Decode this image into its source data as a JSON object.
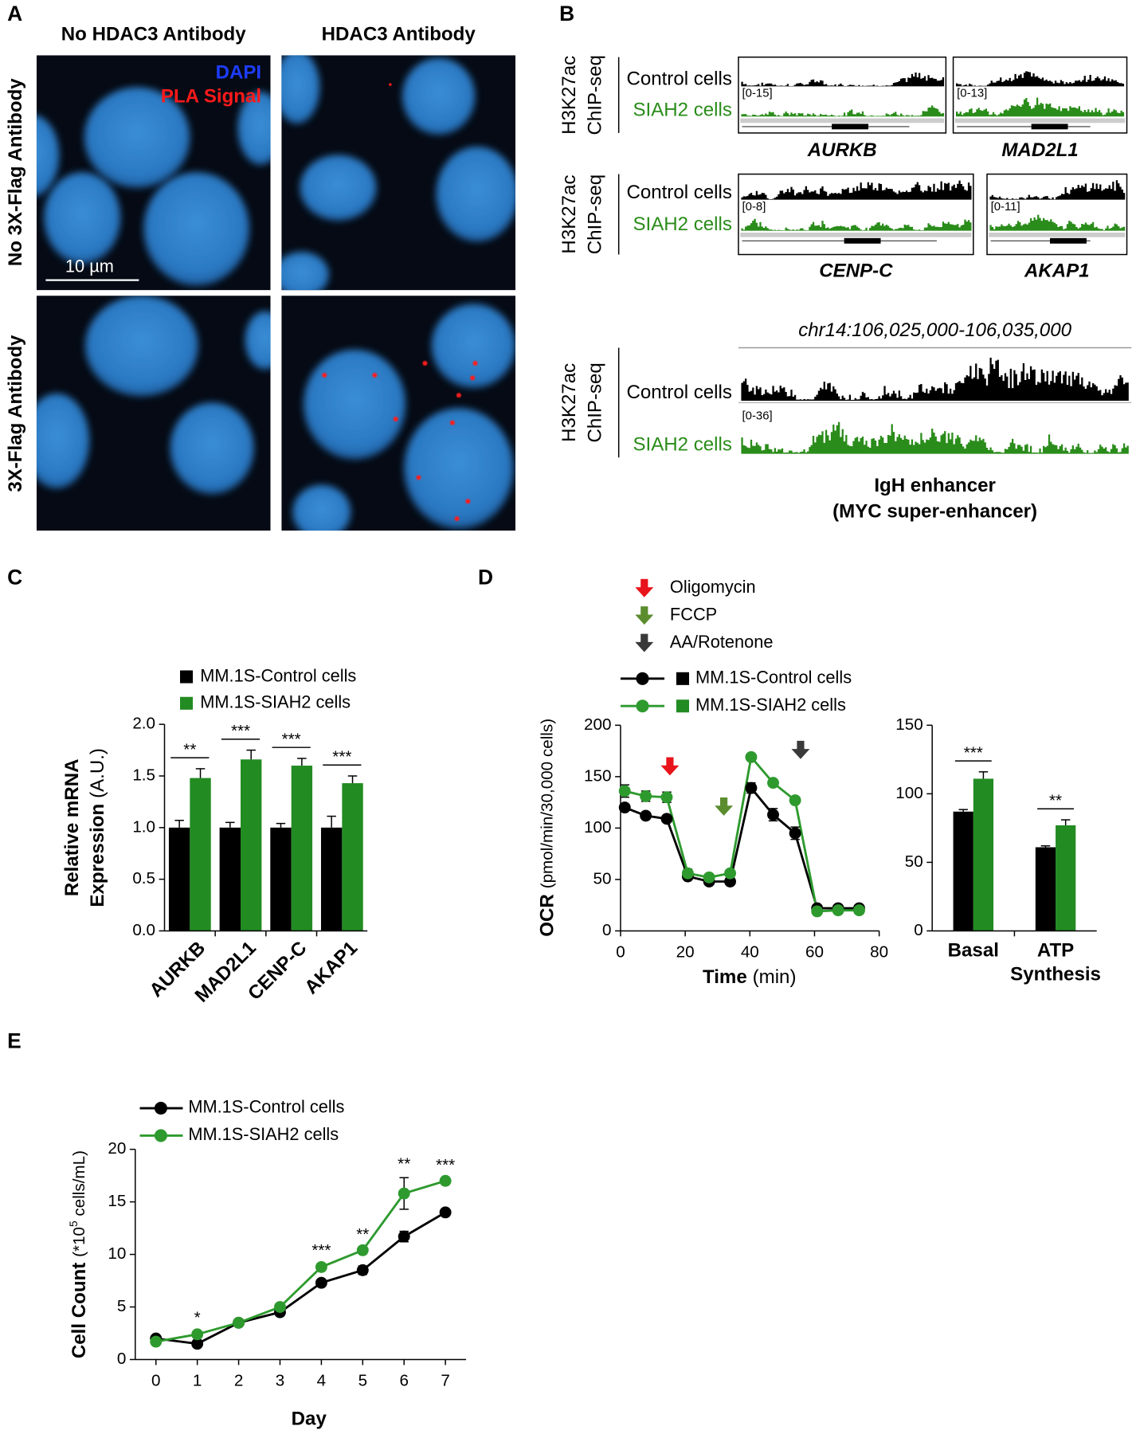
{
  "panel_a": {
    "letter": "A",
    "column_titles": [
      "No HDAC3 Antibody",
      "HDAC3 Antibody"
    ],
    "row_titles": [
      "No 3X-Flag Antibody",
      "3X-Flag Antibody"
    ],
    "legend": [
      {
        "name": "DAPI",
        "color": "#1e3cff"
      },
      {
        "name": "PLA Signal",
        "color": "#ff1a1a"
      }
    ],
    "scale_bar": "10 µm"
  },
  "panel_b": {
    "letter": "B",
    "assay": [
      "H3K27ac",
      "ChIP-seq"
    ],
    "track_names": [
      "Control cells",
      "SIAH2 cells"
    ],
    "track_colors": [
      "#000000",
      "#2a8c1a"
    ],
    "rows": [
      {
        "loci": [
          {
            "gene": "AURKB",
            "range": "[0-15]"
          },
          {
            "gene": "MAD2L1",
            "range": "[0-13]"
          }
        ]
      },
      {
        "loci": [
          {
            "gene": "CENP-C",
            "range": "[0-8]"
          },
          {
            "gene": "AKAP1",
            "range": "[0-11]"
          }
        ]
      },
      {
        "coordinates": "chr14:106,025,000-106,035,000",
        "loci": [
          {
            "gene": "IgH enhancer",
            "subtitle": "(MYC super-enhancer)",
            "range": "[0-36]"
          }
        ]
      }
    ]
  },
  "chart_data": [
    {
      "type": "bar",
      "letter": "C",
      "ylabel": [
        "Relative mRNA",
        "Expression",
        "(A.U.)"
      ],
      "categories": [
        "AURKB",
        "MAD2L1",
        "CENP-C",
        "AKAP1"
      ],
      "series": [
        {
          "name": "MM.1S-Control cells",
          "color": "#000000",
          "values": [
            1.0,
            1.0,
            1.0,
            1.0
          ],
          "errors": [
            0.07,
            0.05,
            0.04,
            0.11
          ]
        },
        {
          "name": "MM.1S-SIAH2 cells",
          "color": "#228b22",
          "values": [
            1.48,
            1.66,
            1.6,
            1.43
          ],
          "errors": [
            0.09,
            0.09,
            0.07,
            0.07
          ]
        }
      ],
      "significance": [
        "**",
        "***",
        "***",
        "***"
      ],
      "ylim": [
        0,
        2
      ],
      "yticks": [
        {
          "value": 0,
          "label": "0.0"
        },
        {
          "value": 0.5,
          "label": "0.5"
        },
        {
          "value": 1,
          "label": "1.0"
        },
        {
          "value": 1.5,
          "label": "1.5"
        },
        {
          "value": 2,
          "label": "2.0"
        }
      ]
    },
    {
      "type": "line",
      "letter": "D",
      "treatments": [
        {
          "name": "Oligomycin",
          "color": "#e8141b"
        },
        {
          "name": "FCCP",
          "color": "#5b8c2e"
        },
        {
          "name": "AA/Rotenone",
          "color": "#3a3a3a"
        }
      ],
      "ylabel": [
        "OCR",
        "(pmol/min/30,000 cells)"
      ],
      "xlabel": [
        "Time",
        "(min)"
      ],
      "x": [
        1.3,
        7.8,
        14.3,
        20.8,
        27.4,
        33.9,
        40.4,
        47.2,
        54,
        60.8,
        67.3,
        73.8
      ],
      "series": [
        {
          "name": "MM.1S-Control cells",
          "color": "#000000",
          "values": [
            120,
            112,
            109,
            53,
            48,
            48,
            139,
            113,
            95,
            22,
            22,
            22
          ],
          "errors": [
            3,
            2,
            2,
            3,
            2,
            2,
            5,
            6,
            6,
            2,
            2,
            2
          ]
        },
        {
          "name": "MM.1S-SIAH2 cells",
          "color": "#2e9a2e",
          "values": [
            136,
            131,
            130,
            56,
            52,
            56,
            169,
            144,
            127,
            19,
            20,
            20
          ],
          "errors": [
            6,
            5,
            5,
            4,
            3,
            3,
            3,
            3,
            3,
            2,
            2,
            2
          ]
        }
      ],
      "xlim": [
        0,
        80
      ],
      "xticks": [
        0,
        20,
        40,
        60,
        80
      ],
      "ylim": [
        0,
        200
      ],
      "yticks": [
        0,
        50,
        100,
        150,
        200
      ]
    },
    {
      "type": "bar",
      "categories": [
        "Basal",
        "ATP Synthesis"
      ],
      "series": [
        {
          "color": "#000000",
          "values": [
            87,
            61
          ],
          "errors": [
            1.5,
            1
          ]
        },
        {
          "color": "#228b22",
          "values": [
            111,
            77
          ],
          "errors": [
            5,
            4
          ]
        }
      ],
      "significance": [
        "***",
        "**"
      ],
      "ylim": [
        0,
        150
      ],
      "yticks": [
        0,
        50,
        100,
        150
      ]
    },
    {
      "type": "line",
      "letter": "E",
      "ylabel": [
        "Cell Count",
        "(*10",
        "5",
        "cells/mL)"
      ],
      "xlabel": "Day",
      "x": [
        0,
        1,
        2,
        3,
        4,
        5,
        6,
        7
      ],
      "series": [
        {
          "name": "MM.1S-Control cells",
          "color": "#000000",
          "values": [
            2.0,
            1.5,
            3.5,
            4.5,
            7.3,
            8.5,
            11.7,
            14.0
          ],
          "errors": [
            0.1,
            0.15,
            0.1,
            0.1,
            0.2,
            0.4,
            0.5,
            0.2
          ]
        },
        {
          "name": "MM.1S-SIAH2 cells",
          "color": "#2e9a2e",
          "values": [
            1.7,
            2.4,
            3.5,
            5.0,
            8.8,
            10.4,
            15.8,
            17.0
          ],
          "errors": [
            0.1,
            0.3,
            0.1,
            0.15,
            0.3,
            0.2,
            1.5,
            0.2
          ]
        }
      ],
      "significance": [
        null,
        "*",
        null,
        null,
        "***",
        "**",
        "**",
        "***"
      ],
      "xlim": [
        -0.5,
        7.5
      ],
      "xticks": [
        0,
        1,
        2,
        3,
        4,
        5,
        6,
        7
      ],
      "ylim": [
        0,
        20
      ],
      "yticks": [
        0,
        5,
        10,
        15,
        20
      ]
    }
  ]
}
